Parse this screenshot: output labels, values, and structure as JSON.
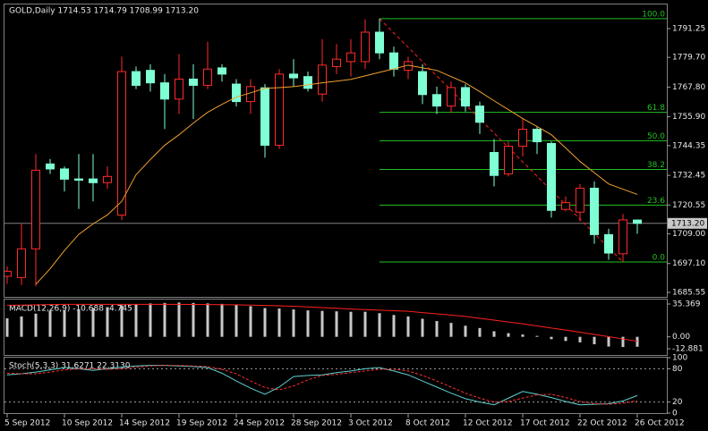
{
  "chart_data": [
    {
      "type": "candlestick",
      "title": "GOLD,Daily  1714.53 1714.79 1708.99 1713.20",
      "categories": [
        "5 Sep 2012",
        null,
        null,
        null,
        "10 Sep 2012",
        null,
        null,
        null,
        "14 Sep 2012",
        null,
        null,
        null,
        "19 Sep 2012",
        null,
        null,
        null,
        "24 Sep 2012",
        null,
        null,
        null,
        "28 Sep 2012",
        null,
        null,
        null,
        "3 Oct 2012",
        null,
        null,
        null,
        "8 Oct 2012",
        null,
        null,
        null,
        "12 Oct 2012",
        null,
        null,
        null,
        "17 Oct 2012",
        null,
        null,
        null,
        "22 Oct 2012",
        null,
        null,
        null,
        "26 Oct 2012"
      ],
      "open": [
        1692,
        1691.5,
        1703,
        1737,
        1735,
        1731,
        1731,
        1729.5,
        1716.5,
        1774,
        1774.5,
        1769.5,
        1763,
        1771,
        1768.5,
        1775.5,
        1769,
        1762,
        1767.5,
        1744.5,
        1773,
        1772,
        1765,
        1776,
        1778,
        1778,
        1789.8,
        1781.5,
        1774.5,
        1774,
        1764.8,
        1760.2,
        1767.6,
        1760.2,
        1741.6,
        1733,
        1744.1,
        1750.9,
        1745.2,
        1718.8,
        1717.7,
        1727.3,
        1708.7,
        1701,
        1714.53
      ],
      "high": [
        1696,
        1713,
        1741,
        1739,
        1736,
        1741,
        1741,
        1736,
        1780,
        1776,
        1777,
        1773,
        1781,
        1777,
        1786,
        1777,
        1771,
        1771,
        1769,
        1775,
        1779,
        1774,
        1787,
        1785,
        1787,
        1795,
        1795.2,
        1784,
        1780,
        1777,
        1768,
        1770,
        1769,
        1762,
        1747,
        1746,
        1755,
        1752,
        1746,
        1724,
        1729,
        1730,
        1711,
        1717,
        1714.79
      ],
      "low": [
        1689,
        1688.5,
        1688,
        1733,
        1726,
        1719,
        1722,
        1727,
        1714.5,
        1767,
        1766,
        1751,
        1757,
        1755,
        1767,
        1770,
        1760,
        1757,
        1739.5,
        1743,
        1768,
        1766,
        1762,
        1773,
        1772,
        1775,
        1779,
        1772,
        1771,
        1761,
        1757,
        1757.5,
        1758,
        1749,
        1728,
        1732,
        1740,
        1741,
        1715.5,
        1718,
        1714,
        1705,
        1698.6,
        1697.8,
        1708.99
      ],
      "close": [
        1694,
        1703,
        1734.5,
        1735,
        1730.9,
        1730.5,
        1729.5,
        1732,
        1774,
        1768.5,
        1769.5,
        1763,
        1771,
        1768.5,
        1775,
        1773,
        1762,
        1768,
        1744.5,
        1773,
        1771.5,
        1767.3,
        1776.6,
        1779,
        1781.5,
        1789.8,
        1781.5,
        1775,
        1778,
        1764.8,
        1760.2,
        1767.6,
        1760.2,
        1753.7,
        1732.4,
        1744.1,
        1750.9,
        1745.9,
        1718.4,
        1721.5,
        1727.3,
        1708.7,
        1701.3,
        1714.6,
        1713.2
      ],
      "up_color": "#ff2a2a",
      "down_color": "#7fffd4",
      "moving_average": {
        "color": "#f0a030",
        "values": [
          null,
          null,
          1688.8,
          1695,
          1702.3,
          1708.8,
          1713,
          1716.6,
          1722,
          1732.7,
          1738.8,
          1744.5,
          1748.7,
          1753.4,
          1757.7,
          1760.9,
          1763.8,
          1765.5,
          1767.3,
          1767.6,
          1768,
          1768.7,
          1769.5,
          1770.2,
          1770.9,
          1772.3,
          1773.7,
          1775.1,
          1776.6,
          1775.5,
          1774.5,
          1772,
          1769.5,
          1766,
          1762.3,
          1758.8,
          1755.2,
          1752,
          1748.7,
          1743.4,
          1738,
          1733.5,
          1729,
          1726.9,
          1724.8
        ]
      },
      "fibo": {
        "color": "#22c022",
        "trend_color": "#ff2020",
        "levels": [
          {
            "label": "100.0",
            "value": 1795.2
          },
          {
            "label": "61.8",
            "value": 1757.7
          },
          {
            "label": "50.0",
            "value": 1746.3
          },
          {
            "label": "38.2",
            "value": 1734.8
          },
          {
            "label": "23.6",
            "value": 1720.5
          },
          {
            "label": "0.0",
            "value": 1697.7
          }
        ]
      },
      "current_price": {
        "value": 1713.2,
        "label": "1713.20"
      },
      "ylim": [
        1683.75,
        1800.9
      ],
      "yticks": [
        1791.25,
        {
          "value": 1779.7,
          "label": "1779.70"
        },
        {
          "value": 1767.8,
          "label": "1767.80"
        },
        {
          "value": 1755.9,
          "label": "1755.90"
        },
        1744.35,
        1732.45,
        1720.55,
        {
          "value": 1709,
          "label": "1709.00"
        },
        {
          "value": 1697.1,
          "label": "1697.10"
        },
        1685.55
      ]
    },
    {
      "type": "bar",
      "title": "MACD(12,26,9) -10.688 -4.745",
      "color": "#c8c8c8",
      "values": [
        20,
        22,
        25,
        28,
        29,
        30,
        31,
        32,
        34,
        35,
        36,
        36.5,
        37,
        36.5,
        36,
        35.5,
        34.5,
        33,
        31,
        30.5,
        29.5,
        28.5,
        28,
        27.5,
        27,
        27,
        25.5,
        23.5,
        22,
        19.5,
        17,
        15,
        12,
        9.5,
        6,
        4,
        2.5,
        1,
        -2.5,
        -4.5,
        -6,
        -8,
        -10.5,
        -11,
        -10.688
      ],
      "signal": {
        "color": "#ff2020",
        "values": [
          34,
          34.2,
          34.5,
          34.8,
          35,
          35,
          35,
          35,
          35,
          35,
          35,
          35,
          35,
          34.9,
          34.8,
          34.6,
          34.5,
          34.2,
          33.8,
          33.4,
          33,
          32.3,
          31.5,
          30.8,
          30,
          29.4,
          28.8,
          28.2,
          27.5,
          26.1,
          24.8,
          23.4,
          22,
          20,
          18,
          16,
          14,
          11.8,
          9.5,
          7.3,
          5,
          2.6,
          0.2,
          -2.3,
          -4.745
        ]
      },
      "ylim": [
        -19.6,
        40.2
      ],
      "yticks": [
        35.369,
        {
          "value": 0,
          "label": "0.00"
        },
        -12.881
      ]
    },
    {
      "type": "line",
      "title": "Stoch(5,3,3) 31.6271 22.3130",
      "series": [
        {
          "color": "#5fd0d0",
          "dashed": false,
          "values": [
            69,
            71,
            74,
            78,
            82,
            80,
            77,
            80,
            83,
            85,
            86,
            86,
            85,
            84,
            82,
            72,
            58,
            45,
            34,
            47,
            66,
            68,
            69,
            73,
            76,
            80,
            82,
            76,
            69,
            58,
            47,
            36,
            26,
            20,
            15,
            27,
            39,
            34,
            28,
            21,
            15,
            16,
            17,
            22,
            31.6271
          ]
        },
        {
          "color": "#ff3030",
          "dashed": true,
          "values": [
            72,
            71,
            71,
            74,
            78,
            80,
            80,
            79,
            80,
            83,
            85,
            86,
            86,
            85,
            84,
            79,
            71,
            58,
            46,
            42,
            49,
            60,
            68,
            70,
            73,
            76,
            79,
            79,
            76,
            68,
            58,
            47,
            36,
            27,
            20,
            21,
            27,
            33,
            34,
            28,
            21,
            17,
            16,
            18,
            22.313
          ]
        }
      ],
      "levels": [
        80,
        20
      ],
      "ylim": [
        0,
        100
      ],
      "yticks": [
        100,
        80,
        20,
        0
      ]
    }
  ]
}
